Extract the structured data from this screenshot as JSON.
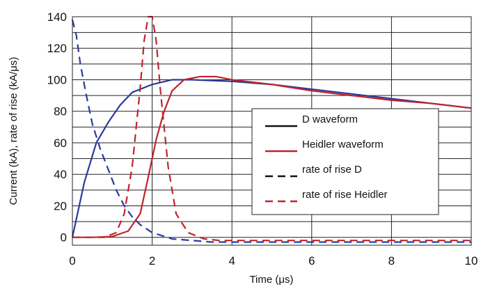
{
  "chart_data": {
    "type": "line",
    "xlabel": "Time (μs)",
    "ylabel": "Current (kA), rate of rise (kA/μs)",
    "xlim": [
      0,
      10
    ],
    "ylim": [
      -5,
      140
    ],
    "x_ticks": [
      "0",
      "2",
      "4",
      "6",
      "8",
      "10"
    ],
    "y_ticks": [
      "0",
      "20",
      "40",
      "60",
      "80",
      "100",
      "120",
      "140"
    ],
    "grid": true,
    "legend_position": "center-right",
    "series": [
      {
        "name": "D waveform",
        "style": "solid",
        "color": "#2b3a9c",
        "x": [
          0,
          0.3,
          0.6,
          0.9,
          1.2,
          1.5,
          2.0,
          2.5,
          3.0,
          4.0,
          5.0,
          6.0,
          7.0,
          8.0,
          9.0,
          10.0
        ],
        "y": [
          0,
          35,
          60,
          73,
          84,
          92,
          97,
          100,
          100,
          99,
          97,
          94,
          91,
          88,
          85,
          82
        ]
      },
      {
        "name": "Heidler waveform",
        "style": "solid",
        "color": "#c0232e",
        "x": [
          0,
          0.5,
          1.0,
          1.4,
          1.7,
          1.9,
          2.1,
          2.3,
          2.5,
          2.8,
          3.2,
          3.6,
          4.0,
          5.0,
          6.0,
          7.0,
          8.0,
          9.0,
          10.0
        ],
        "y": [
          0,
          0,
          0.5,
          4,
          15,
          38,
          62,
          80,
          93,
          100,
          102,
          102,
          100,
          97,
          93,
          90,
          87,
          85,
          82
        ]
      },
      {
        "name": "rate of rise D",
        "style": "dashed",
        "color": "#2b3a9c",
        "x": [
          0,
          0.1,
          0.2,
          0.35,
          0.5,
          0.7,
          0.9,
          1.1,
          1.3,
          1.5,
          1.7,
          2.0,
          2.5,
          3.0,
          3.5,
          10.0
        ],
        "y": [
          138,
          128,
          110,
          90,
          72,
          56,
          43,
          30,
          20,
          13,
          8,
          3,
          -1,
          -2,
          -3,
          -3
        ]
      },
      {
        "name": "rate of rise Heidler",
        "style": "dashed",
        "color": "#c0232e",
        "x": [
          0,
          0.8,
          1.1,
          1.3,
          1.5,
          1.7,
          1.8,
          1.9,
          2.0,
          2.1,
          2.2,
          2.4,
          2.6,
          2.9,
          3.3,
          3.7,
          10.0
        ],
        "y": [
          0,
          0,
          3,
          15,
          45,
          95,
          125,
          140,
          140,
          125,
          95,
          45,
          15,
          3,
          -1,
          -2,
          -2
        ]
      }
    ]
  }
}
